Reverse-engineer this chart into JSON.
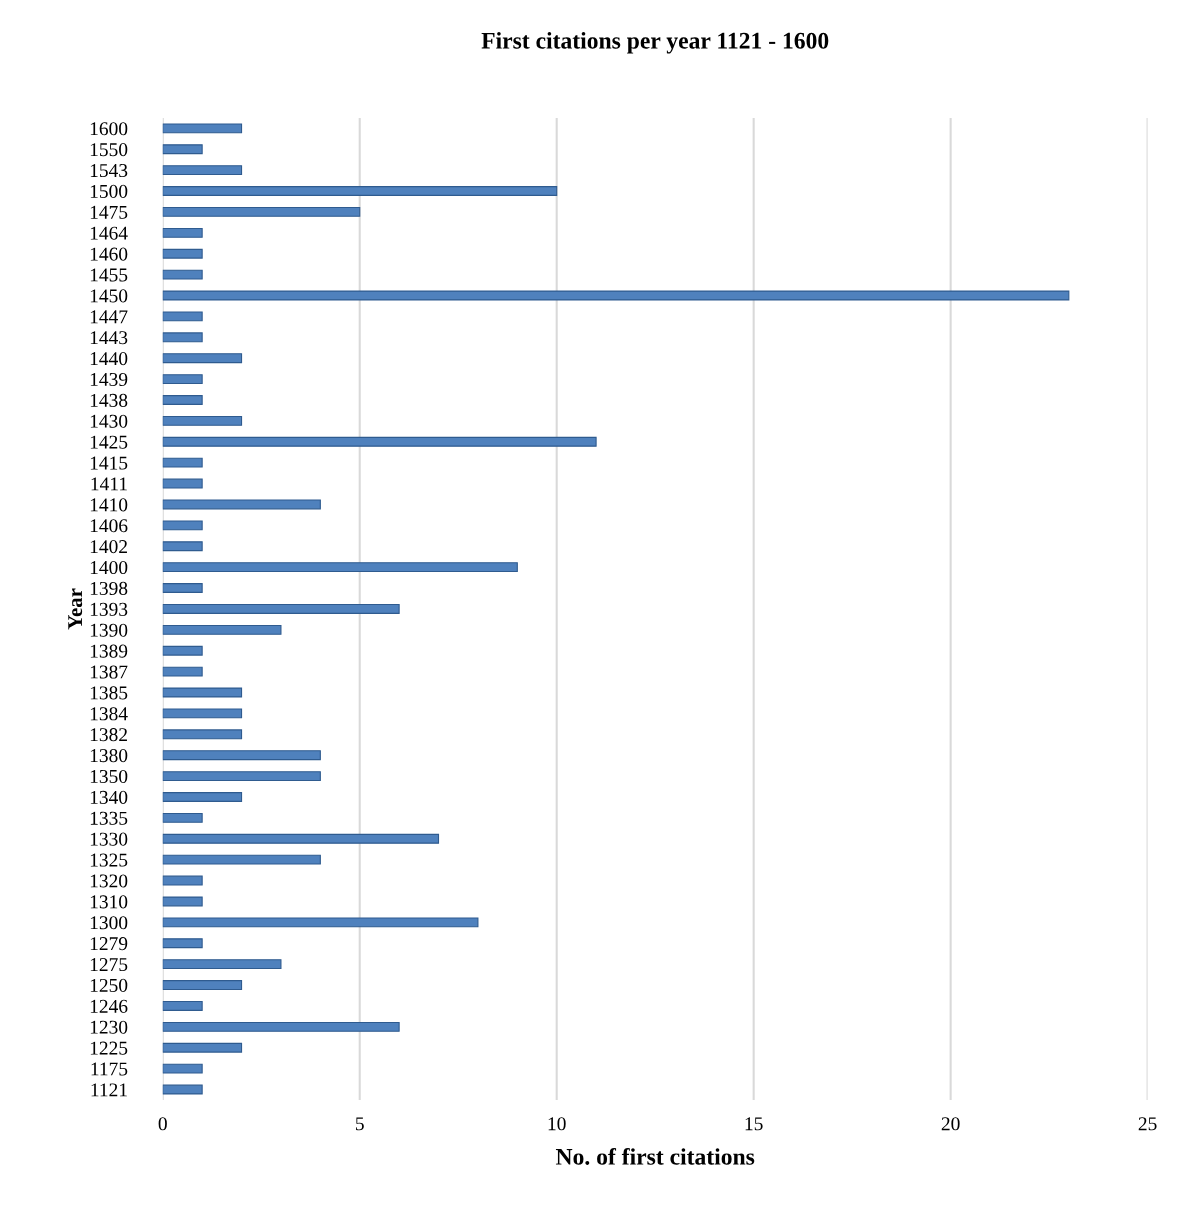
{
  "chart_data": {
    "type": "bar",
    "orientation": "horizontal",
    "title": "First citations per year 1121 - 1600",
    "xlabel": "No. of first citations",
    "ylabel": "Year",
    "categories": [
      "1600",
      "1550",
      "1543",
      "1500",
      "1475",
      "1464",
      "1460",
      "1455",
      "1450",
      "1447",
      "1443",
      "1440",
      "1439",
      "1438",
      "1430",
      "1425",
      "1415",
      "1411",
      "1410",
      "1406",
      "1402",
      "1400",
      "1398",
      "1393",
      "1390",
      "1389",
      "1387",
      "1385",
      "1384",
      "1382",
      "1380",
      "1350",
      "1340",
      "1335",
      "1330",
      "1325",
      "1320",
      "1310",
      "1300",
      "1279",
      "1275",
      "1250",
      "1246",
      "1230",
      "1225",
      "1175",
      "1121"
    ],
    "values": [
      2,
      1,
      2,
      10,
      5,
      1,
      1,
      1,
      23,
      1,
      1,
      2,
      1,
      1,
      2,
      11,
      1,
      1,
      4,
      1,
      1,
      9,
      1,
      6,
      3,
      1,
      1,
      2,
      2,
      2,
      4,
      4,
      2,
      1,
      7,
      4,
      1,
      1,
      8,
      1,
      3,
      2,
      1,
      6,
      2,
      1,
      1
    ],
    "color": "#4f81bd",
    "xlim": [
      0,
      25
    ],
    "xticks": [
      0,
      5,
      10,
      15,
      20,
      25
    ],
    "grid": "x"
  }
}
